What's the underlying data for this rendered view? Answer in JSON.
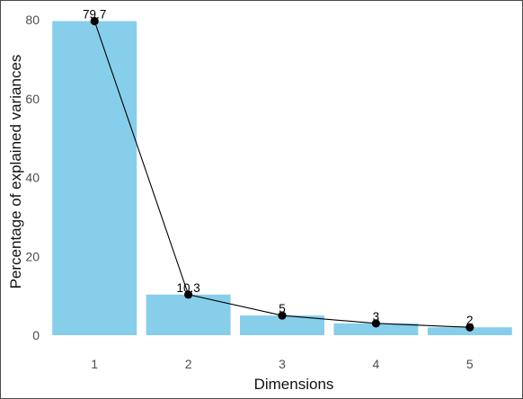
{
  "chart_data": {
    "type": "bar",
    "categories": [
      "1",
      "2",
      "3",
      "4",
      "5"
    ],
    "values": [
      79.7,
      10.3,
      5,
      3,
      2
    ],
    "data_labels": [
      "79.7",
      "10.3",
      "5",
      "3",
      "2"
    ],
    "line_overlay": true,
    "title": "",
    "xlabel": "Dimensions",
    "ylabel": "Percentage of explained variances",
    "ylim": [
      0,
      83
    ],
    "yticks": [
      0,
      20,
      40,
      60,
      80
    ],
    "ytick_labels": [
      "0",
      "20",
      "40",
      "60",
      "80"
    ],
    "grid": false,
    "bar_color": "#87CEEB",
    "line_color": "#000000",
    "point_color": "#000000"
  }
}
